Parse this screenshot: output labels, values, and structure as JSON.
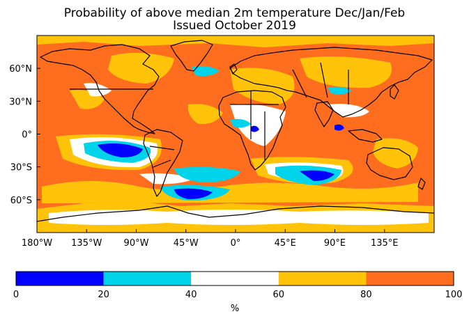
{
  "title_line1": "Probability of above median 2m temperature Dec/Jan/Feb",
  "title_line2": "Issued October 2019",
  "x_ticks": [
    {
      "lon": -180,
      "label": "180°W"
    },
    {
      "lon": -135,
      "label": "135°W"
    },
    {
      "lon": -90,
      "label": "90°W"
    },
    {
      "lon": -45,
      "label": "45°W"
    },
    {
      "lon": 0,
      "label": "0°"
    },
    {
      "lon": 45,
      "label": "45°E"
    },
    {
      "lon": 90,
      "label": "90°E"
    },
    {
      "lon": 135,
      "label": "135°E"
    }
  ],
  "y_ticks": [
    {
      "lat": 60,
      "label": "60°N"
    },
    {
      "lat": 30,
      "label": "30°N"
    },
    {
      "lat": 0,
      "label": "0°"
    },
    {
      "lat": -30,
      "label": "30°S"
    },
    {
      "lat": -60,
      "label": "60°S"
    }
  ],
  "colorbar": {
    "unit": "%",
    "bins": [
      {
        "from": 0,
        "to": 20,
        "color": "#0000ff"
      },
      {
        "from": 20,
        "to": 40,
        "color": "#00d4ea"
      },
      {
        "from": 40,
        "to": 60,
        "color": "#ffffff"
      },
      {
        "from": 60,
        "to": 80,
        "color": "#ffc40a"
      },
      {
        "from": 80,
        "to": 100,
        "color": "#ff6e1e"
      }
    ],
    "tick_labels": [
      "0",
      "20",
      "40",
      "60",
      "80",
      "100"
    ]
  },
  "colors": {
    "high": "#ff6e1e",
    "mid_high": "#ffc40a",
    "neutral": "#ffffff",
    "low": "#00d4ea",
    "very_low": "#0000ff",
    "coast": "#000000"
  }
}
